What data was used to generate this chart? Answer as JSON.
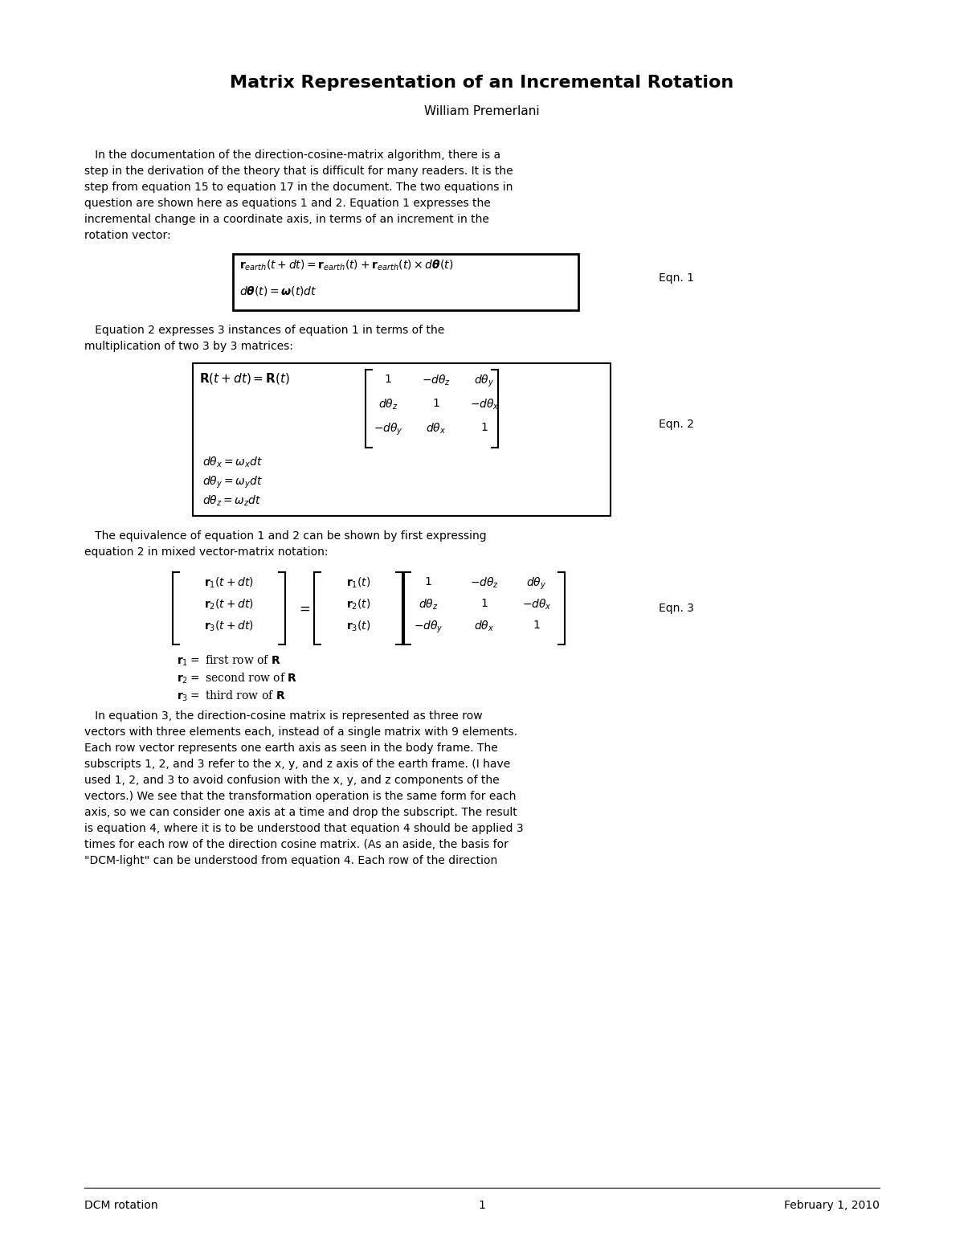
{
  "title": "Matrix Representation of an Incremental Rotation",
  "author": "William Premerlani",
  "background_color": "#ffffff",
  "text_color": "#000000",
  "footer_left": "DCM rotation",
  "footer_center": "1",
  "footer_right": "February 1, 2010",
  "paragraph1": "   In the documentation of the direction-cosine-matrix algorithm, there is a\nstep in the derivation of the theory that is difficult for many readers. It is the\nstep from equation 15 to equation 17 in the document. The two equations in\nquestion are shown here as equations 1 and 2. Equation 1 expresses the\nincremental change in a coordinate axis, in terms of an increment in the\nrotation vector:",
  "eqn1_label": "Eqn. 1",
  "paragraph2": "   Equation 2 expresses 3 instances of equation 1 in terms of the\nmultiplication of two 3 by 3 matrices:",
  "eqn2_label": "Eqn. 2",
  "paragraph3": "   The equivalence of equation 1 and 2 can be shown by first expressing\nequation 2 in mixed vector-matrix notation:",
  "eqn3_label": "Eqn. 3",
  "paragraph4": "   In equation 3, the direction-cosine matrix is represented as three row\nvectors with three elements each, instead of a single matrix with 9 elements.\nEach row vector represents one earth axis as seen in the body frame. The\nsubscripts 1, 2, and 3 refer to the x, y, and z axis of the earth frame. (I have\nused 1, 2, and 3 to avoid confusion with the x, y, and z components of the\nvectors.) We see that the transformation operation is the same form for each\naxis, so we can consider one axis at a time and drop the subscript. The result\nis equation 4, where it is to be understood that equation 4 should be applied 3\ntimes for each row of the direction cosine matrix. (As an aside, the basis for\n\"DCM-light\" can be understood from equation 4. Each row of the direction"
}
